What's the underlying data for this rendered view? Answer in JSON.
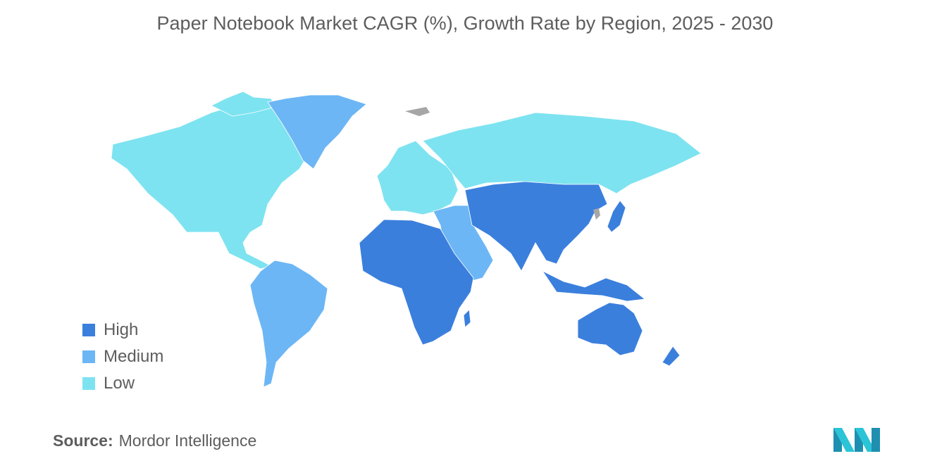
{
  "title": "Paper Notebook Market CAGR (%), Growth Rate by Region, 2025 - 2030",
  "legend": [
    {
      "label": "High",
      "color": "#3b7fdd"
    },
    {
      "label": "Medium",
      "color": "#6cb6f5"
    },
    {
      "label": "Low",
      "color": "#7ee3f0"
    }
  ],
  "no_data_color": "#a6a6a6",
  "regions": [
    {
      "name": "North America",
      "level": "Low"
    },
    {
      "name": "Greenland",
      "level": "Medium"
    },
    {
      "name": "South America",
      "level": "Medium"
    },
    {
      "name": "Europe",
      "level": "Low"
    },
    {
      "name": "Russia",
      "level": "Low"
    },
    {
      "name": "Middle East",
      "level": "Medium"
    },
    {
      "name": "Africa",
      "level": "High"
    },
    {
      "name": "Asia-Pacific",
      "level": "High"
    },
    {
      "name": "Australia",
      "level": "High"
    },
    {
      "name": "New Zealand",
      "level": "High"
    }
  ],
  "source": {
    "label": "Source:",
    "value": "Mordor Intelligence"
  },
  "logo": {
    "icon": "mordor-intelligence-logo",
    "colors": [
      "#1e8fb0",
      "#2bc4d6"
    ]
  }
}
